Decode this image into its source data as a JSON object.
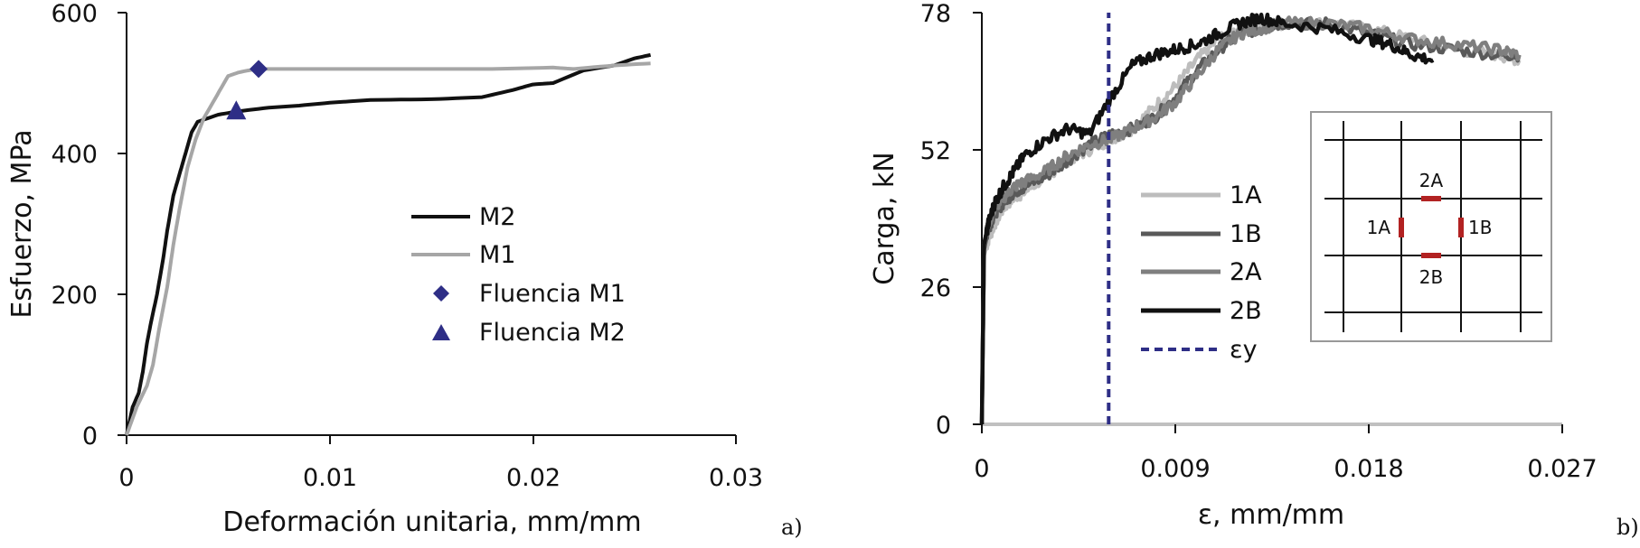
{
  "chart_data": [
    {
      "id": "a",
      "type": "line",
      "panel_label": "a)",
      "title": "",
      "xlabel": "Deformación unitaria, mm/mm",
      "ylabel": "Esfuerzo, MPa",
      "xlim": [
        0,
        0.03
      ],
      "ylim": [
        0,
        600
      ],
      "xticks": [
        "0",
        "0.01",
        "0.02",
        "0.03"
      ],
      "yticks": [
        "0",
        "200",
        "400",
        "600"
      ],
      "grid": false,
      "legend_position": "center-right",
      "series": [
        {
          "name": "M2",
          "color": "#111111",
          "x": [
            0,
            0.0003,
            0.0006,
            0.0008,
            0.001,
            0.0012,
            0.0015,
            0.0018,
            0.002,
            0.0023,
            0.0026,
            0.0029,
            0.0032,
            0.0035,
            0.0045,
            0.0055,
            0.007,
            0.0085,
            0.01,
            0.012,
            0.015,
            0.0175,
            0.019,
            0.02,
            0.021,
            0.0225,
            0.024,
            0.025,
            0.0258
          ],
          "y": [
            0,
            40,
            60,
            90,
            130,
            160,
            200,
            250,
            290,
            340,
            370,
            400,
            430,
            445,
            455,
            460,
            465,
            468,
            472,
            476,
            477,
            480,
            490,
            498,
            500,
            518,
            525,
            535,
            540
          ]
        },
        {
          "name": "M1",
          "color": "#a6a6a6",
          "x": [
            0,
            0.0005,
            0.001,
            0.0013,
            0.0016,
            0.002,
            0.0023,
            0.0026,
            0.003,
            0.0034,
            0.0038,
            0.0042,
            0.0046,
            0.005,
            0.0055,
            0.006,
            0.0065,
            0.008,
            0.012,
            0.018,
            0.021,
            0.022,
            0.024,
            0.0258
          ],
          "y": [
            0,
            40,
            70,
            100,
            150,
            210,
            270,
            320,
            380,
            420,
            450,
            470,
            490,
            510,
            515,
            518,
            520,
            520,
            520,
            520,
            522,
            520,
            525,
            528
          ]
        }
      ],
      "markers": [
        {
          "name": "Fluencia M1",
          "shape": "diamond",
          "color": "#2e2e86",
          "x": 0.0065,
          "y": 520
        },
        {
          "name": "Fluencia M2",
          "shape": "triangle",
          "color": "#2e2e86",
          "x": 0.0054,
          "y": 460
        }
      ]
    },
    {
      "id": "b",
      "type": "line",
      "panel_label": "b)",
      "title": "",
      "xlabel": "ε, mm/mm",
      "ylabel": "Carga, kN",
      "xlim": [
        0,
        0.027
      ],
      "ylim": [
        0,
        78
      ],
      "xticks": [
        "0",
        "0.009",
        "0.018",
        "0.027"
      ],
      "yticks": [
        "0",
        "26",
        "52",
        "78"
      ],
      "grid": false,
      "legend_position": "center",
      "series": [
        {
          "name": "1A",
          "color": "#bdbdbd",
          "x": [
            0,
            0.0001,
            0.0003,
            0.0006,
            0.001,
            0.0015,
            0.002,
            0.003,
            0.004,
            0.005,
            0.006,
            0.007,
            0.008,
            0.009,
            0.01,
            0.011,
            0.012,
            0.013,
            0.014,
            0.016,
            0.018,
            0.02,
            0.022,
            0.024,
            0.025
          ],
          "y": [
            0,
            32,
            35,
            38,
            41,
            43,
            44,
            47,
            50,
            52,
            54,
            56,
            60,
            64,
            69,
            73,
            75,
            75,
            76,
            76,
            75,
            73,
            71,
            70,
            69
          ]
        },
        {
          "name": "1B",
          "color": "#595959",
          "x": [
            0,
            0.0001,
            0.0003,
            0.0006,
            0.001,
            0.0015,
            0.002,
            0.003,
            0.004,
            0.005,
            0.006,
            0.007,
            0.008,
            0.009,
            0.01,
            0.011,
            0.012,
            0.013,
            0.014,
            0.016,
            0.018,
            0.02,
            0.022,
            0.024,
            0.025
          ],
          "y": [
            0,
            33,
            37,
            40,
            42,
            44,
            45,
            47,
            50,
            53,
            55,
            56,
            58,
            62,
            67,
            71,
            74,
            75,
            76,
            76,
            74,
            72,
            71,
            70,
            70
          ]
        },
        {
          "name": "2A",
          "color": "#7f7f7f",
          "x": [
            0,
            0.0001,
            0.0003,
            0.0006,
            0.001,
            0.0015,
            0.002,
            0.003,
            0.004,
            0.005,
            0.006,
            0.007,
            0.008,
            0.009,
            0.01,
            0.011,
            0.012,
            0.013,
            0.014,
            0.016,
            0.018,
            0.02,
            0.022,
            0.024,
            0.025
          ],
          "y": [
            0,
            34,
            38,
            41,
            43,
            45,
            46,
            48,
            51,
            53,
            54,
            56,
            58,
            61,
            66,
            71,
            74,
            75,
            76,
            76,
            75,
            73,
            72,
            71,
            70
          ]
        },
        {
          "name": "2B",
          "color": "#111111",
          "x": [
            0,
            0.0001,
            0.0003,
            0.0006,
            0.001,
            0.0015,
            0.002,
            0.003,
            0.004,
            0.005,
            0.006,
            0.007,
            0.008,
            0.009,
            0.01,
            0.011,
            0.012,
            0.013,
            0.014,
            0.016,
            0.018,
            0.019,
            0.02,
            0.021
          ],
          "y": [
            0,
            34,
            38,
            42,
            45,
            48,
            51,
            54,
            56,
            55,
            62,
            68,
            70,
            71,
            72,
            74,
            76,
            77,
            76,
            75,
            73,
            72,
            70,
            69
          ]
        },
        {
          "name": "εy",
          "color": "#2e2e86",
          "dashed": true,
          "x": [
            0.0059,
            0.0059
          ],
          "y": [
            0,
            78
          ]
        }
      ],
      "inset": {
        "labels": [
          "2A",
          "1A",
          "1B",
          "2B"
        ]
      }
    }
  ]
}
